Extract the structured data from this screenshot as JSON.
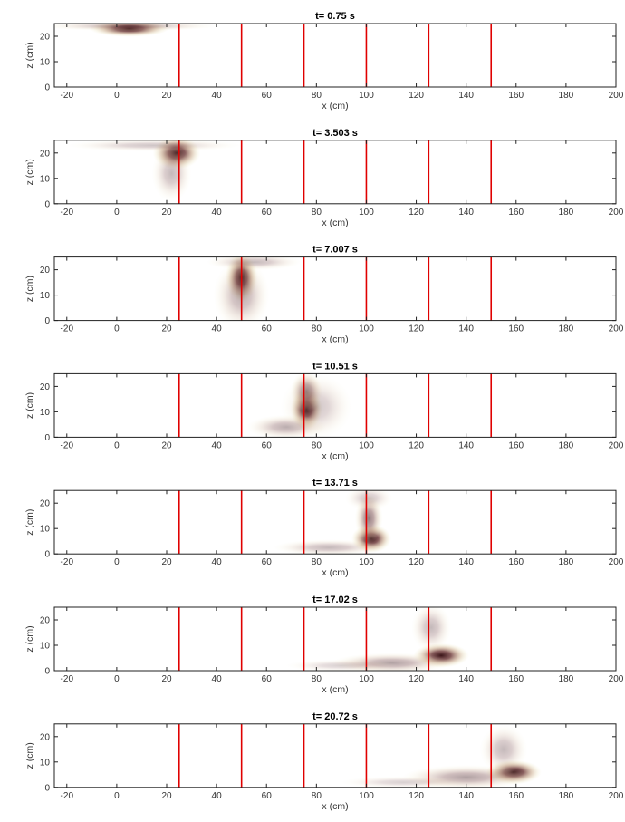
{
  "chart_data": [
    {
      "type": "heatmap",
      "title": "t= 0.75 s",
      "xlabel": "x (cm)",
      "ylabel": "z (cm)",
      "xlim": [
        -25,
        200
      ],
      "ylim": [
        0,
        25
      ],
      "xticks": [
        -20,
        0,
        20,
        40,
        60,
        80,
        100,
        120,
        140,
        160,
        180,
        200
      ],
      "xtick_labels": [
        "-20",
        "0",
        "20",
        "40",
        "60",
        "80",
        "100",
        "120",
        "140",
        "160",
        "180",
        "200"
      ],
      "yticks": [
        0,
        10,
        20
      ],
      "ytick_labels": [
        "0",
        "10",
        "20"
      ],
      "vlines": [
        25,
        50,
        75,
        100,
        125,
        150
      ],
      "vline_color": "#e00000",
      "blobs": [
        {
          "x": 5,
          "z": 23,
          "sx": 10,
          "sz": 2,
          "a": 1.0
        },
        {
          "x": 5,
          "z": 24,
          "sx": 22,
          "sz": 1.2,
          "a": 0.35
        }
      ]
    },
    {
      "type": "heatmap",
      "title": "t= 3.503 s",
      "xlabel": "x (cm)",
      "ylabel": "z (cm)",
      "xlim": [
        -25,
        200
      ],
      "ylim": [
        0,
        25
      ],
      "xticks": [
        -20,
        0,
        20,
        40,
        60,
        80,
        100,
        120,
        140,
        160,
        180,
        200
      ],
      "xtick_labels": [
        "-20",
        "0",
        "20",
        "40",
        "60",
        "80",
        "100",
        "120",
        "140",
        "160",
        "180",
        "200"
      ],
      "yticks": [
        0,
        10,
        20
      ],
      "ytick_labels": [
        "0",
        "10",
        "20"
      ],
      "vlines": [
        25,
        50,
        75,
        100,
        125,
        150
      ],
      "vline_color": "#e00000",
      "blobs": [
        {
          "x": 24,
          "z": 20,
          "sx": 6,
          "sz": 4,
          "a": 1.0
        },
        {
          "x": 22,
          "z": 12,
          "sx": 5,
          "sz": 7,
          "a": 0.3
        },
        {
          "x": 15,
          "z": 23,
          "sx": 22,
          "sz": 1.5,
          "a": 0.25
        }
      ]
    },
    {
      "type": "heatmap",
      "title": "t= 7.007 s",
      "xlabel": "x (cm)",
      "ylabel": "z (cm)",
      "xlim": [
        -25,
        200
      ],
      "ylim": [
        0,
        25
      ],
      "xticks": [
        -20,
        0,
        20,
        40,
        60,
        80,
        100,
        120,
        140,
        160,
        180,
        200
      ],
      "xtick_labels": [
        "-20",
        "0",
        "20",
        "40",
        "60",
        "80",
        "100",
        "120",
        "140",
        "160",
        "180",
        "200"
      ],
      "yticks": [
        0,
        10,
        20
      ],
      "ytick_labels": [
        "0",
        "10",
        "20"
      ],
      "vlines": [
        25,
        50,
        75,
        100,
        125,
        150
      ],
      "vline_color": "#e00000",
      "blobs": [
        {
          "x": 50,
          "z": 17,
          "sx": 4,
          "sz": 6,
          "a": 1.0
        },
        {
          "x": 50,
          "z": 10,
          "sx": 7,
          "sz": 9,
          "a": 0.35
        },
        {
          "x": 55,
          "z": 23,
          "sx": 12,
          "sz": 2,
          "a": 0.3
        }
      ]
    },
    {
      "type": "heatmap",
      "title": "t= 10.51 s",
      "xlabel": "x (cm)",
      "ylabel": "z (cm)",
      "xlim": [
        -25,
        200
      ],
      "ylim": [
        0,
        25
      ],
      "xticks": [
        -20,
        0,
        20,
        40,
        60,
        80,
        100,
        120,
        140,
        160,
        180,
        200
      ],
      "xtick_labels": [
        "-20",
        "0",
        "20",
        "40",
        "60",
        "80",
        "100",
        "120",
        "140",
        "160",
        "180",
        "200"
      ],
      "yticks": [
        0,
        10,
        20
      ],
      "ytick_labels": [
        "0",
        "10",
        "20"
      ],
      "vlines": [
        25,
        50,
        75,
        100,
        125,
        150
      ],
      "vline_color": "#e00000",
      "blobs": [
        {
          "x": 76,
          "z": 11,
          "sx": 4,
          "sz": 5,
          "a": 1.0
        },
        {
          "x": 76,
          "z": 18,
          "sx": 4,
          "sz": 5,
          "a": 0.55
        },
        {
          "x": 68,
          "z": 4,
          "sx": 10,
          "sz": 3,
          "a": 0.35
        },
        {
          "x": 80,
          "z": 12,
          "sx": 9,
          "sz": 8,
          "a": 0.25
        }
      ]
    },
    {
      "type": "heatmap",
      "title": "t= 13.71 s",
      "xlabel": "x (cm)",
      "ylabel": "z (cm)",
      "xlim": [
        -25,
        200
      ],
      "ylim": [
        0,
        25
      ],
      "xticks": [
        -20,
        0,
        20,
        40,
        60,
        80,
        100,
        120,
        140,
        160,
        180,
        200
      ],
      "xtick_labels": [
        "-20",
        "0",
        "20",
        "40",
        "60",
        "80",
        "100",
        "120",
        "140",
        "160",
        "180",
        "200"
      ],
      "yticks": [
        0,
        10,
        20
      ],
      "ytick_labels": [
        "0",
        "10",
        "20"
      ],
      "vlines": [
        25,
        50,
        75,
        100,
        125,
        150
      ],
      "vline_color": "#e00000",
      "blobs": [
        {
          "x": 102,
          "z": 6,
          "sx": 5,
          "sz": 3.5,
          "a": 1.0
        },
        {
          "x": 101,
          "z": 14,
          "sx": 3.5,
          "sz": 6,
          "a": 0.55
        },
        {
          "x": 85,
          "z": 2.5,
          "sx": 14,
          "sz": 2,
          "a": 0.3
        },
        {
          "x": 101,
          "z": 22,
          "sx": 6,
          "sz": 3,
          "a": 0.25
        }
      ]
    },
    {
      "type": "heatmap",
      "title": "t= 17.02 s",
      "xlabel": "x (cm)",
      "ylabel": "z (cm)",
      "xlim": [
        -25,
        200
      ],
      "ylim": [
        0,
        25
      ],
      "xticks": [
        -20,
        0,
        20,
        40,
        60,
        80,
        100,
        120,
        140,
        160,
        180,
        200
      ],
      "xtick_labels": [
        "-20",
        "0",
        "20",
        "40",
        "60",
        "80",
        "100",
        "120",
        "140",
        "160",
        "180",
        "200"
      ],
      "yticks": [
        0,
        10,
        20
      ],
      "ytick_labels": [
        "0",
        "10",
        "20"
      ],
      "vlines": [
        25,
        50,
        75,
        100,
        125,
        150
      ],
      "vline_color": "#e00000",
      "blobs": [
        {
          "x": 130,
          "z": 6,
          "sx": 7,
          "sz": 3,
          "a": 1.0
        },
        {
          "x": 110,
          "z": 3,
          "sx": 15,
          "sz": 2.5,
          "a": 0.4
        },
        {
          "x": 126,
          "z": 17,
          "sx": 5,
          "sz": 6,
          "a": 0.3
        },
        {
          "x": 90,
          "z": 2,
          "sx": 14,
          "sz": 1.5,
          "a": 0.2
        }
      ]
    },
    {
      "type": "heatmap",
      "title": "t= 20.72 s",
      "xlabel": "x (cm)",
      "ylabel": "z (cm)",
      "xlim": [
        -25,
        200
      ],
      "ylim": [
        0,
        25
      ],
      "xticks": [
        -20,
        0,
        20,
        40,
        60,
        80,
        100,
        120,
        140,
        160,
        180,
        200
      ],
      "xtick_labels": [
        "-20",
        "0",
        "20",
        "40",
        "60",
        "80",
        "100",
        "120",
        "140",
        "160",
        "180",
        "200"
      ],
      "yticks": [
        0,
        10,
        20
      ],
      "ytick_labels": [
        "0",
        "10",
        "20"
      ],
      "vlines": [
        25,
        50,
        75,
        100,
        125,
        150
      ],
      "vline_color": "#e00000",
      "blobs": [
        {
          "x": 159,
          "z": 6,
          "sx": 7,
          "sz": 3,
          "a": 1.0
        },
        {
          "x": 140,
          "z": 4,
          "sx": 16,
          "sz": 3,
          "a": 0.4
        },
        {
          "x": 155,
          "z": 15,
          "sx": 6,
          "sz": 6,
          "a": 0.3
        },
        {
          "x": 115,
          "z": 2,
          "sx": 16,
          "sz": 1.5,
          "a": 0.2
        }
      ]
    }
  ]
}
